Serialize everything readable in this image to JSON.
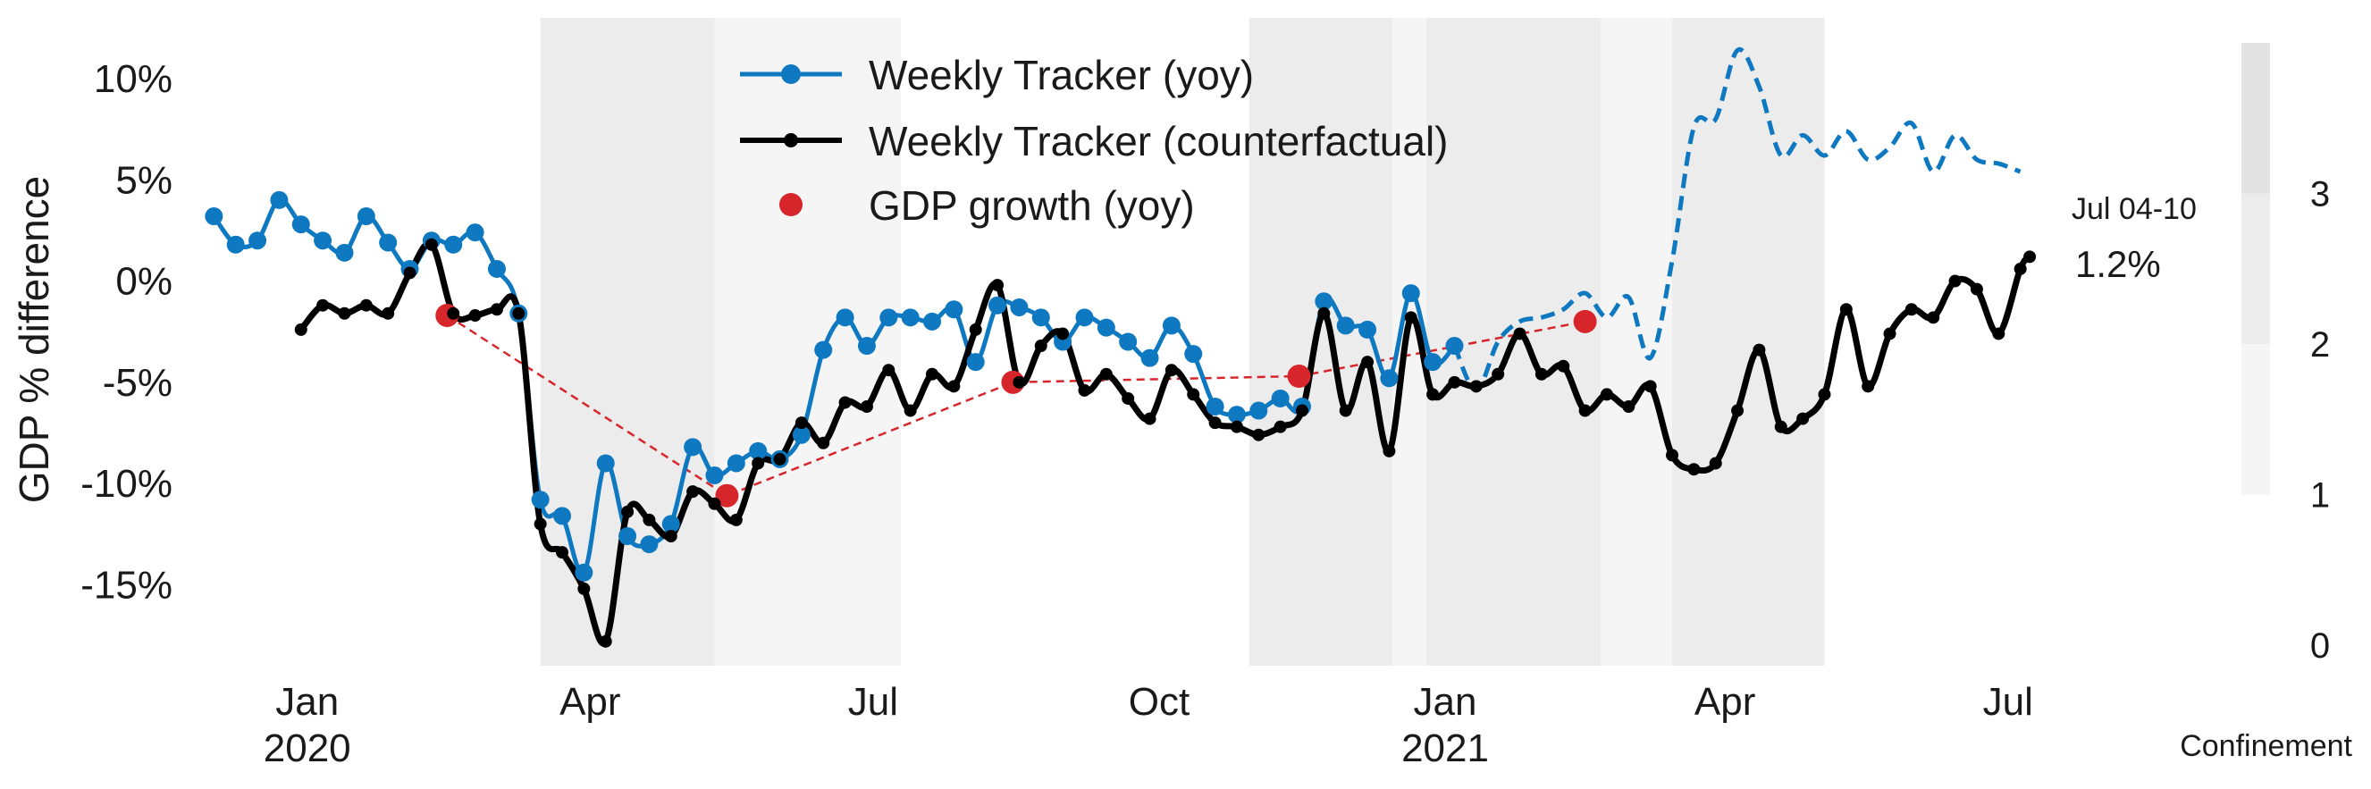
{
  "chart_data": {
    "type": "line",
    "ylabel": "GDP % difference",
    "ylim": [
      -19,
      13
    ],
    "y_ticks": [
      {
        "value": 10,
        "label": "10%"
      },
      {
        "value": 5,
        "label": "5%"
      },
      {
        "value": 0,
        "label": "0%"
      },
      {
        "value": -5,
        "label": "-5%"
      },
      {
        "value": -10,
        "label": "-10%"
      },
      {
        "value": -15,
        "label": "-15%"
      }
    ],
    "xlim": [
      "2019-11-25",
      "2021-07-12"
    ],
    "x_ticks": [
      {
        "date": "2020-01-01",
        "label": "Jan",
        "sublabel": "2020"
      },
      {
        "date": "2020-04-01",
        "label": "Apr",
        "sublabel": ""
      },
      {
        "date": "2020-07-01",
        "label": "Jul",
        "sublabel": ""
      },
      {
        "date": "2020-10-01",
        "label": "Oct",
        "sublabel": ""
      },
      {
        "date": "2021-01-01",
        "label": "Jan",
        "sublabel": "2021"
      },
      {
        "date": "2021-04-01",
        "label": "Apr",
        "sublabel": ""
      },
      {
        "date": "2021-07-01",
        "label": "Jul",
        "sublabel": ""
      }
    ],
    "confinement_periods": [
      {
        "start": "2020-03-16",
        "end": "2020-05-11",
        "level": 3
      },
      {
        "start": "2020-05-11",
        "end": "2020-07-10",
        "level": 1
      },
      {
        "start": "2020-10-30",
        "end": "2020-12-15",
        "level": 3
      },
      {
        "start": "2020-12-15",
        "end": "2020-12-26",
        "level": 1
      },
      {
        "start": "2020-12-26",
        "end": "2021-02-20",
        "level": 3
      },
      {
        "start": "2021-02-20",
        "end": "2021-03-15",
        "level": 1
      },
      {
        "start": "2021-03-15",
        "end": "2021-05-03",
        "level": 3
      }
    ],
    "colorbar": {
      "label": "Confinement",
      "ticks": [
        "0",
        "1",
        "2",
        "3"
      ],
      "range": [
        0,
        4
      ],
      "bands": [
        {
          "from": 1,
          "to": 2,
          "color": "#f5f5f5"
        },
        {
          "from": 2,
          "to": 3,
          "color": "#ececec"
        },
        {
          "from": 3,
          "to": 4,
          "color": "#e2e2e2"
        }
      ]
    },
    "legend": {
      "placement": "top-center",
      "entries": [
        "Weekly Tracker (yoy)",
        "Weekly Tracker (counterfactual)",
        "GDP growth (yoy)"
      ]
    },
    "annotation": {
      "period": "Jul 04-10",
      "value": "1.2%"
    },
    "series": [
      {
        "name": "Weekly Tracker (yoy)",
        "color": "#0e78c0",
        "style": "solid-markers",
        "points": [
          [
            "2019-12-02",
            3.2
          ],
          [
            "2019-12-09",
            1.8
          ],
          [
            "2019-12-16",
            2.0
          ],
          [
            "2019-12-23",
            4.0
          ],
          [
            "2019-12-30",
            2.8
          ],
          [
            "2020-01-06",
            2.0
          ],
          [
            "2020-01-13",
            1.4
          ],
          [
            "2020-01-20",
            3.2
          ],
          [
            "2020-01-27",
            1.9
          ],
          [
            "2020-02-03",
            0.6
          ],
          [
            "2020-02-10",
            2.0
          ],
          [
            "2020-02-17",
            1.8
          ],
          [
            "2020-02-24",
            2.4
          ],
          [
            "2020-03-02",
            0.6
          ],
          [
            "2020-03-09",
            -1.6
          ],
          [
            "2020-03-16",
            -10.8
          ],
          [
            "2020-03-23",
            -11.6
          ],
          [
            "2020-03-30",
            -14.4
          ],
          [
            "2020-04-06",
            -9.0
          ],
          [
            "2020-04-13",
            -12.6
          ],
          [
            "2020-04-20",
            -13.0
          ],
          [
            "2020-04-27",
            -12.0
          ],
          [
            "2020-05-04",
            -8.2
          ],
          [
            "2020-05-11",
            -9.6
          ],
          [
            "2020-05-18",
            -9.0
          ],
          [
            "2020-05-25",
            -8.4
          ],
          [
            "2020-06-01",
            -8.8
          ],
          [
            "2020-06-08",
            -7.6
          ],
          [
            "2020-06-15",
            -3.4
          ],
          [
            "2020-06-22",
            -1.8
          ],
          [
            "2020-06-29",
            -3.2
          ],
          [
            "2020-07-06",
            -1.8
          ],
          [
            "2020-07-13",
            -1.8
          ],
          [
            "2020-07-20",
            -2.0
          ],
          [
            "2020-07-27",
            -1.4
          ],
          [
            "2020-08-03",
            -4.0
          ],
          [
            "2020-08-10",
            -1.2
          ],
          [
            "2020-08-17",
            -1.3
          ],
          [
            "2020-08-24",
            -1.8
          ],
          [
            "2020-08-31",
            -3.0
          ],
          [
            "2020-09-07",
            -1.8
          ],
          [
            "2020-09-14",
            -2.3
          ],
          [
            "2020-09-21",
            -3.0
          ],
          [
            "2020-09-28",
            -3.8
          ],
          [
            "2020-10-05",
            -2.2
          ],
          [
            "2020-10-12",
            -3.6
          ],
          [
            "2020-10-19",
            -6.2
          ],
          [
            "2020-10-26",
            -6.6
          ],
          [
            "2020-11-02",
            -6.4
          ],
          [
            "2020-11-09",
            -5.8
          ],
          [
            "2020-11-16",
            -6.2
          ],
          [
            "2020-11-23",
            -1.0
          ],
          [
            "2020-11-30",
            -2.2
          ],
          [
            "2020-12-07",
            -2.4
          ],
          [
            "2020-12-14",
            -4.8
          ],
          [
            "2020-12-21",
            -0.6
          ],
          [
            "2020-12-28",
            -4.0
          ],
          [
            "2021-01-04",
            -3.2
          ]
        ]
      },
      {
        "name": "Weekly Tracker (yoy)",
        "color": "#0e78c0",
        "style": "dashed",
        "points": [
          [
            "2021-01-04",
            -3.2
          ],
          [
            "2021-01-11",
            -5.4
          ],
          [
            "2021-01-18",
            -3.0
          ],
          [
            "2021-01-25",
            -2.0
          ],
          [
            "2021-02-01",
            -1.8
          ],
          [
            "2021-02-08",
            -1.4
          ],
          [
            "2021-02-15",
            -0.6
          ],
          [
            "2021-02-22",
            -1.8
          ],
          [
            "2021-03-01",
            -0.8
          ],
          [
            "2021-03-08",
            -3.8
          ],
          [
            "2021-03-15",
            1.0
          ],
          [
            "2021-03-22",
            7.6
          ],
          [
            "2021-03-29",
            8.0
          ],
          [
            "2021-04-05",
            11.4
          ],
          [
            "2021-04-12",
            9.6
          ],
          [
            "2021-04-19",
            6.2
          ],
          [
            "2021-04-26",
            7.2
          ],
          [
            "2021-05-03",
            6.2
          ],
          [
            "2021-05-10",
            7.4
          ],
          [
            "2021-05-17",
            6.0
          ],
          [
            "2021-05-24",
            6.6
          ],
          [
            "2021-05-31",
            7.8
          ],
          [
            "2021-06-07",
            5.4
          ],
          [
            "2021-06-14",
            7.2
          ],
          [
            "2021-06-21",
            6.0
          ],
          [
            "2021-06-28",
            5.8
          ],
          [
            "2021-07-05",
            5.4
          ]
        ]
      },
      {
        "name": "Weekly Tracker (counterfactual)",
        "color": "#000000",
        "style": "solid-small-markers",
        "points": [
          [
            "2019-12-30",
            -2.4
          ],
          [
            "2020-01-06",
            -1.2
          ],
          [
            "2020-01-13",
            -1.6
          ],
          [
            "2020-01-20",
            -1.2
          ],
          [
            "2020-01-27",
            -1.6
          ],
          [
            "2020-02-03",
            0.4
          ],
          [
            "2020-02-10",
            1.8
          ],
          [
            "2020-02-17",
            -1.6
          ],
          [
            "2020-02-24",
            -1.7
          ],
          [
            "2020-03-02",
            -1.4
          ],
          [
            "2020-03-09",
            -1.6
          ],
          [
            "2020-03-16",
            -12.0
          ],
          [
            "2020-03-23",
            -13.4
          ],
          [
            "2020-03-30",
            -15.2
          ],
          [
            "2020-04-06",
            -17.8
          ],
          [
            "2020-04-13",
            -11.4
          ],
          [
            "2020-04-20",
            -11.8
          ],
          [
            "2020-04-27",
            -12.6
          ],
          [
            "2020-05-04",
            -10.4
          ],
          [
            "2020-05-11",
            -11.0
          ],
          [
            "2020-05-18",
            -11.8
          ],
          [
            "2020-05-25",
            -9.0
          ],
          [
            "2020-06-01",
            -8.8
          ],
          [
            "2020-06-08",
            -7.0
          ],
          [
            "2020-06-15",
            -8.0
          ],
          [
            "2020-06-22",
            -6.0
          ],
          [
            "2020-06-29",
            -6.2
          ],
          [
            "2020-07-06",
            -4.4
          ],
          [
            "2020-07-13",
            -6.4
          ],
          [
            "2020-07-20",
            -4.6
          ],
          [
            "2020-07-27",
            -5.2
          ],
          [
            "2020-08-03",
            -2.4
          ],
          [
            "2020-08-10",
            -0.2
          ],
          [
            "2020-08-17",
            -5.0
          ],
          [
            "2020-08-24",
            -3.2
          ],
          [
            "2020-08-31",
            -2.6
          ],
          [
            "2020-09-07",
            -5.4
          ],
          [
            "2020-09-14",
            -4.6
          ],
          [
            "2020-09-21",
            -5.8
          ],
          [
            "2020-09-28",
            -6.8
          ],
          [
            "2020-10-05",
            -4.4
          ],
          [
            "2020-10-12",
            -5.6
          ],
          [
            "2020-10-19",
            -7.0
          ],
          [
            "2020-10-26",
            -7.2
          ],
          [
            "2020-11-02",
            -7.6
          ],
          [
            "2020-11-09",
            -7.2
          ],
          [
            "2020-11-16",
            -6.4
          ],
          [
            "2020-11-23",
            -1.6
          ],
          [
            "2020-11-30",
            -6.4
          ],
          [
            "2020-12-07",
            -4.0
          ],
          [
            "2020-12-14",
            -8.4
          ],
          [
            "2020-12-21",
            -1.8
          ],
          [
            "2020-12-28",
            -5.6
          ],
          [
            "2021-01-04",
            -5.0
          ],
          [
            "2021-01-11",
            -5.2
          ],
          [
            "2021-01-18",
            -4.6
          ],
          [
            "2021-01-25",
            -2.6
          ],
          [
            "2021-02-01",
            -4.6
          ],
          [
            "2021-02-08",
            -4.2
          ],
          [
            "2021-02-15",
            -6.4
          ],
          [
            "2021-02-22",
            -5.6
          ],
          [
            "2021-03-01",
            -6.2
          ],
          [
            "2021-03-08",
            -5.2
          ],
          [
            "2021-03-15",
            -8.6
          ],
          [
            "2021-03-22",
            -9.3
          ],
          [
            "2021-03-29",
            -9.0
          ],
          [
            "2021-04-05",
            -6.4
          ],
          [
            "2021-04-12",
            -3.4
          ],
          [
            "2021-04-19",
            -7.2
          ],
          [
            "2021-04-26",
            -6.8
          ],
          [
            "2021-05-03",
            -5.6
          ],
          [
            "2021-05-10",
            -1.4
          ],
          [
            "2021-05-17",
            -5.2
          ],
          [
            "2021-05-24",
            -2.6
          ],
          [
            "2021-05-31",
            -1.4
          ],
          [
            "2021-06-07",
            -1.8
          ],
          [
            "2021-06-14",
            0.0
          ],
          [
            "2021-06-21",
            -0.4
          ],
          [
            "2021-06-28",
            -2.6
          ],
          [
            "2021-07-05",
            0.6
          ],
          [
            "2021-07-08",
            1.2
          ]
        ]
      },
      {
        "name": "GDP growth (yoy)",
        "color": "#d7262b",
        "style": "points-dashed-link",
        "points": [
          [
            "2020-02-15",
            -1.7
          ],
          [
            "2020-05-15",
            -10.6
          ],
          [
            "2020-08-15",
            -5.0
          ],
          [
            "2020-11-15",
            -4.7
          ],
          [
            "2021-02-15",
            -2.0
          ]
        ]
      }
    ]
  }
}
